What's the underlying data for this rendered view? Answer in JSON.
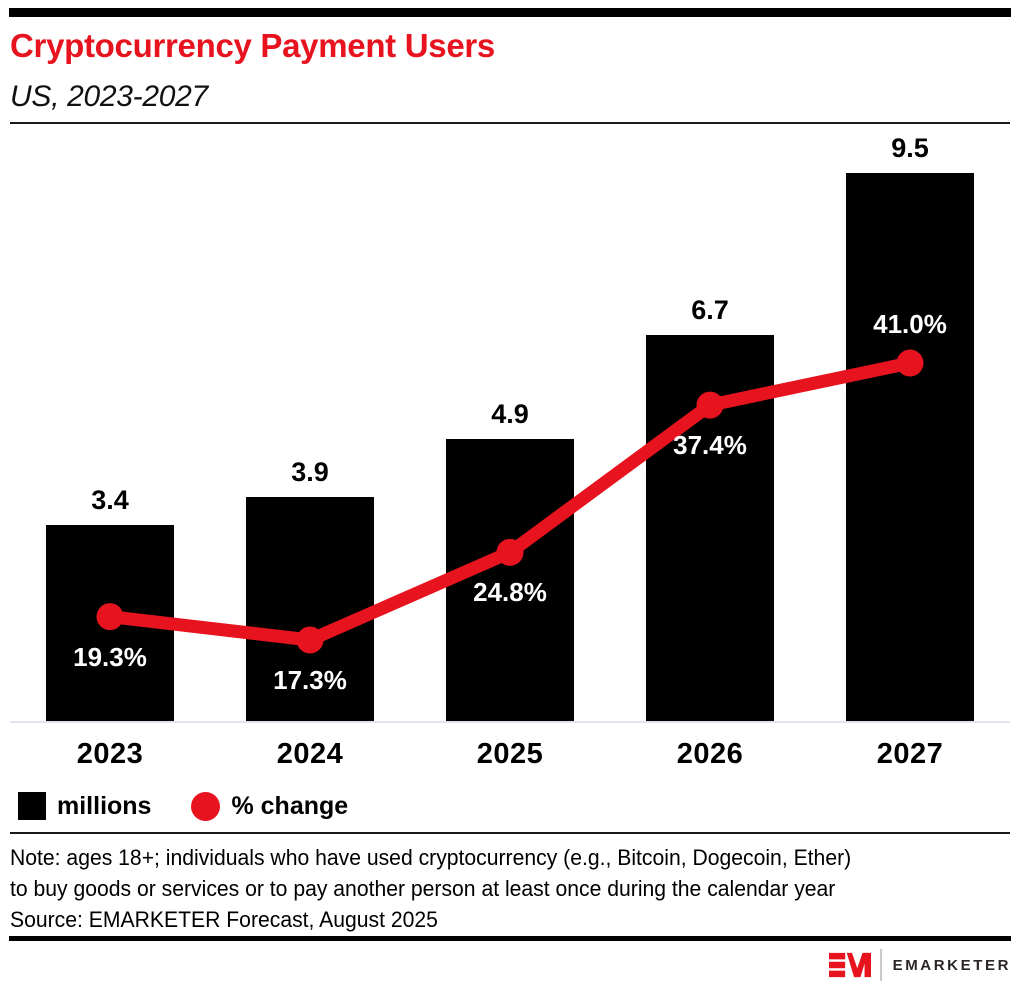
{
  "header": {
    "title": "Cryptocurrency Payment Users",
    "subtitle": "US, 2023-2027"
  },
  "chart_data": {
    "type": "bar",
    "title": "Cryptocurrency Payment Users",
    "subtitle": "US, 2023-2027",
    "categories": [
      "2023",
      "2024",
      "2025",
      "2026",
      "2027"
    ],
    "series": [
      {
        "name": "millions",
        "type": "bar",
        "values": [
          3.4,
          3.9,
          4.9,
          6.7,
          9.5
        ],
        "labels": [
          "3.4",
          "3.9",
          "4.9",
          "6.7",
          "9.5"
        ],
        "color": "#000000"
      },
      {
        "name": "% change",
        "type": "line",
        "values": [
          19.3,
          17.3,
          24.8,
          37.4,
          41.0
        ],
        "labels": [
          "19.3%",
          "17.3%",
          "24.8%",
          "37.4%",
          "41.0%"
        ],
        "label_positions": [
          "below",
          "below",
          "below",
          "below",
          "above"
        ],
        "color": "#e7131e"
      }
    ],
    "legend": [
      {
        "label": "millions",
        "swatch": "square",
        "color": "#000000"
      },
      {
        "label": "% change",
        "swatch": "circle",
        "color": "#e7131e"
      }
    ],
    "legend_position": "bottom-left",
    "grid": false,
    "bar_axis_range": [
      0,
      9.5
    ],
    "line_axis_range": [
      17.3,
      41.0
    ]
  },
  "footer": {
    "note_lines": [
      "Note: ages 18+; individuals who have used cryptocurrency (e.g., Bitcoin, Dogecoin, Ether)",
      "to buy goods or services or to pay another person at least once during the calendar year"
    ],
    "source": "Source: EMARKETER Forecast, August 2025"
  },
  "branding": {
    "monogram": "EM",
    "wordmark": "EMARKETER"
  },
  "colors": {
    "accent_red": "#e7131e",
    "bar_black": "#000000",
    "axis_line": "#dfe3ee"
  }
}
